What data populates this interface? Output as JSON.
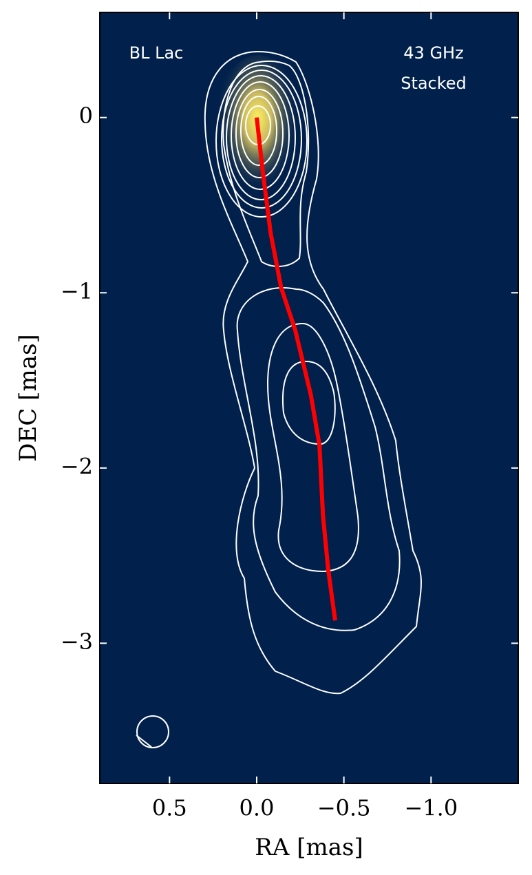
{
  "chart_data": {
    "type": "line",
    "xlabel": "RA [mas]",
    "ylabel": "DEC [mas]",
    "annotations": [
      "BL Lac",
      "43 GHz",
      "Stacked"
    ],
    "xlim": [
      0.9,
      -1.5
    ],
    "ylim": [
      -3.8,
      0.6
    ],
    "xticks": [
      {
        "value": 0.5,
        "label": "0.5"
      },
      {
        "value": 0,
        "label": "0.0"
      },
      {
        "value": -0.5,
        "label": "−0.5"
      },
      {
        "value": -1,
        "label": "−1.0"
      }
    ],
    "yticks": [
      {
        "value": 0,
        "label": "0"
      },
      {
        "value": -1,
        "label": "−1"
      },
      {
        "value": -2,
        "label": "−2"
      },
      {
        "value": -3,
        "label": "−3"
      }
    ],
    "series": [
      {
        "color": "#ff0000",
        "x": [
          0,
          -0.035,
          -0.08,
          -0.14,
          -0.22,
          -0.31,
          -0.36,
          -0.38,
          -0.41,
          -0.45
        ],
        "values": [
          0,
          -0.31,
          -0.66,
          -0.97,
          -1.21,
          -1.58,
          -1.87,
          -2.27,
          -2.58,
          -2.87
        ]
      }
    ]
  }
}
